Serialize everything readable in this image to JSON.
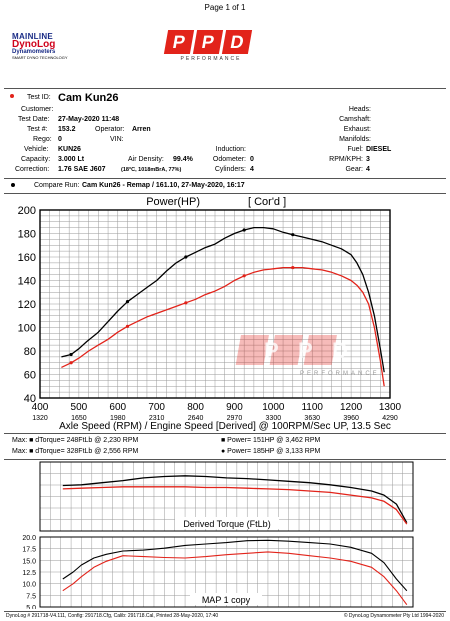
{
  "page_label": "Page 1 of 1",
  "brand": {
    "mainline": "MAINLINE",
    "dynolog": "DynoLog",
    "dynamometers": "Dynamometers",
    "tagline": "SMART DYNO TECHNOLOGY",
    "ppd_letters": [
      "P",
      "P",
      "D"
    ],
    "ppd_sub": "PERFORMANCE"
  },
  "colors": {
    "red": "#e2231a",
    "black": "#000000",
    "grid": "#9a9a9a",
    "accent_red": "#d0021b"
  },
  "test": {
    "test_id_label": "Test ID:",
    "test_id": "Cam Kun26",
    "customer_label": "Customer:",
    "customer": "",
    "test_date_label": "Test Date:",
    "test_date": "27-May-2020 11:48",
    "test_no_label": "Test #:",
    "test_no": "153.2",
    "operator_label": "Operator:",
    "operator": "Arren",
    "rego_label": "Rego:",
    "rego": "0",
    "vin_label": "VIN:",
    "vin": "",
    "vehicle_label": "Vehicle:",
    "vehicle": "KUN26",
    "capacity_label": "Capacity:",
    "capacity": "3.000 Lt",
    "air_density_label": "Air Density:",
    "air_density": "99.4%",
    "correction_label": "Correction:",
    "correction": "1.76 SAE J607",
    "correction_note": "(18°C, 1018mBrA, 77%)",
    "heads_label": "Heads:",
    "camshaft_label": "Camshaft:",
    "exhaust_label": "Exhaust:",
    "manifolds_label": "Manifolds:",
    "induction_label": "Induction:",
    "odometer_label": "Odometer:",
    "odometer": "0",
    "cylinders_label": "Cylinders:",
    "cylinders": "4",
    "fuel_label": "Fuel:",
    "fuel": "DIESEL",
    "rpm_kph_label": "RPM/KPH:",
    "rpm_kph": "3",
    "gear_label": "Gear:",
    "gear": "4"
  },
  "compare": {
    "label": "Compare Run:",
    "value": "Cam Kun26 - Remap / 161.10,  27-May-2020,  16:17"
  },
  "stats": {
    "red_torque": "Max: ■ dTorque= 248FtLb @ 2,230 RPM",
    "red_power": "■ Power= 151HP @ 3,462 RPM",
    "black_torque": "Max: ■ dTorque= 328FtLb @ 2,556 RPM",
    "black_power": "● Power= 185HP @ 3,133 RPM"
  },
  "chart_data": [
    {
      "type": "line",
      "title": "Power(HP)",
      "title_note": "[ Cor'd ]",
      "xlabel": "Axle Speed (RPM) / Engine Speed [Derived] @ 100RPM/Sec UP, 13.5 Sec",
      "xlim": [
        400,
        1300
      ],
      "ylim": [
        40,
        200
      ],
      "x_ticks": [
        "400",
        "500",
        "600",
        "700",
        "800",
        "900",
        "1000",
        "1100",
        "1200",
        "1300"
      ],
      "x_ticks_engine": [
        "1320",
        "1650",
        "1980",
        "2310",
        "2640",
        "2970",
        "3300",
        "3630",
        "3960",
        "4290"
      ],
      "y_ticks": [
        "40",
        "60",
        "80",
        "100",
        "120",
        "140",
        "160",
        "180",
        "200"
      ],
      "grid": true,
      "series": [
        {
          "color": "#000000",
          "x": [
            455,
            480,
            500,
            520,
            550,
            575,
            600,
            625,
            650,
            675,
            700,
            725,
            750,
            775,
            800,
            825,
            850,
            875,
            900,
            925,
            950,
            975,
            1000,
            1025,
            1050,
            1075,
            1100,
            1125,
            1150,
            1175,
            1200,
            1215,
            1230,
            1245,
            1260,
            1275,
            1285
          ],
          "y": [
            75,
            77,
            82,
            88,
            96,
            105,
            114,
            122,
            128,
            134,
            140,
            148,
            155,
            160,
            164,
            168,
            171,
            176,
            180,
            183,
            185,
            185,
            184,
            181,
            179,
            177,
            175,
            173,
            170,
            167,
            162,
            155,
            145,
            130,
            110,
            82,
            62
          ]
        },
        {
          "color": "#e2231a",
          "x": [
            455,
            480,
            500,
            525,
            550,
            575,
            600,
            625,
            650,
            675,
            700,
            725,
            750,
            775,
            800,
            825,
            850,
            875,
            900,
            925,
            950,
            975,
            1000,
            1025,
            1050,
            1075,
            1100,
            1125,
            1150,
            1175,
            1200,
            1215,
            1230,
            1245,
            1260,
            1275,
            1285
          ],
          "y": [
            66,
            70,
            74,
            80,
            85,
            90,
            96,
            101,
            105,
            109,
            112,
            115,
            118,
            121,
            124,
            128,
            131,
            135,
            140,
            144,
            147,
            149,
            150,
            151,
            151,
            151,
            150,
            149,
            147,
            144,
            140,
            136,
            130,
            120,
            100,
            72,
            50
          ]
        }
      ]
    },
    {
      "type": "line",
      "title": "Derived Torque (FtLb)",
      "xlim": [
        400,
        1300
      ],
      "ylim": [
        0,
        1
      ],
      "series": [
        {
          "color": "#000000",
          "x": [
            455,
            500,
            550,
            600,
            650,
            700,
            750,
            800,
            850,
            900,
            950,
            1000,
            1050,
            1100,
            1150,
            1200,
            1230,
            1260,
            1285
          ],
          "y": [
            0.66,
            0.67,
            0.7,
            0.73,
            0.77,
            0.79,
            0.8,
            0.79,
            0.77,
            0.76,
            0.74,
            0.72,
            0.7,
            0.67,
            0.63,
            0.58,
            0.52,
            0.39,
            0.12
          ]
        },
        {
          "color": "#e2231a",
          "x": [
            455,
            500,
            550,
            600,
            650,
            700,
            750,
            800,
            850,
            900,
            950,
            1000,
            1050,
            1100,
            1150,
            1200,
            1230,
            1260,
            1285
          ],
          "y": [
            0.61,
            0.62,
            0.63,
            0.64,
            0.64,
            0.64,
            0.64,
            0.63,
            0.63,
            0.62,
            0.61,
            0.6,
            0.58,
            0.56,
            0.52,
            0.48,
            0.43,
            0.31,
            0.1
          ]
        }
      ]
    },
    {
      "type": "line",
      "title": "MAP 1 copy",
      "xlim": [
        400,
        1300
      ],
      "ylim": [
        5,
        20
      ],
      "y_ticks": [
        "5.0",
        "7.5",
        "10.0",
        "12.5",
        "15.0",
        "17.5",
        "20.0"
      ],
      "series": [
        {
          "color": "#000000",
          "x": [
            455,
            480,
            500,
            530,
            560,
            600,
            650,
            700,
            750,
            800,
            850,
            900,
            950,
            1000,
            1050,
            1100,
            1150,
            1200,
            1230,
            1260,
            1285
          ],
          "y": [
            11,
            12.5,
            14,
            15.5,
            16.3,
            17,
            17.2,
            17.6,
            18.2,
            18.5,
            18.8,
            19.2,
            19.3,
            19.1,
            18.8,
            18.5,
            17.8,
            16.5,
            14.5,
            11,
            8.5
          ]
        },
        {
          "color": "#e2231a",
          "x": [
            455,
            480,
            500,
            530,
            560,
            600,
            650,
            700,
            750,
            800,
            850,
            900,
            950,
            1000,
            1050,
            1100,
            1150,
            1200,
            1230,
            1260,
            1285
          ],
          "y": [
            8.5,
            10,
            11.5,
            13.5,
            14.8,
            16,
            15.8,
            15.6,
            15.5,
            15.8,
            16.2,
            16.5,
            16.8,
            16.5,
            16,
            15.5,
            14.8,
            13.5,
            11.5,
            8.5,
            5.5
          ]
        }
      ]
    }
  ],
  "footer": {
    "left": "DynoLog # 291718-V4.111, Config: 291718.Cfg, Calib: 291718.Cal, Printed 28-May-2020, 17:40",
    "right": "© DynoLog Dynamometer Pty Ltd 1994-2020"
  }
}
